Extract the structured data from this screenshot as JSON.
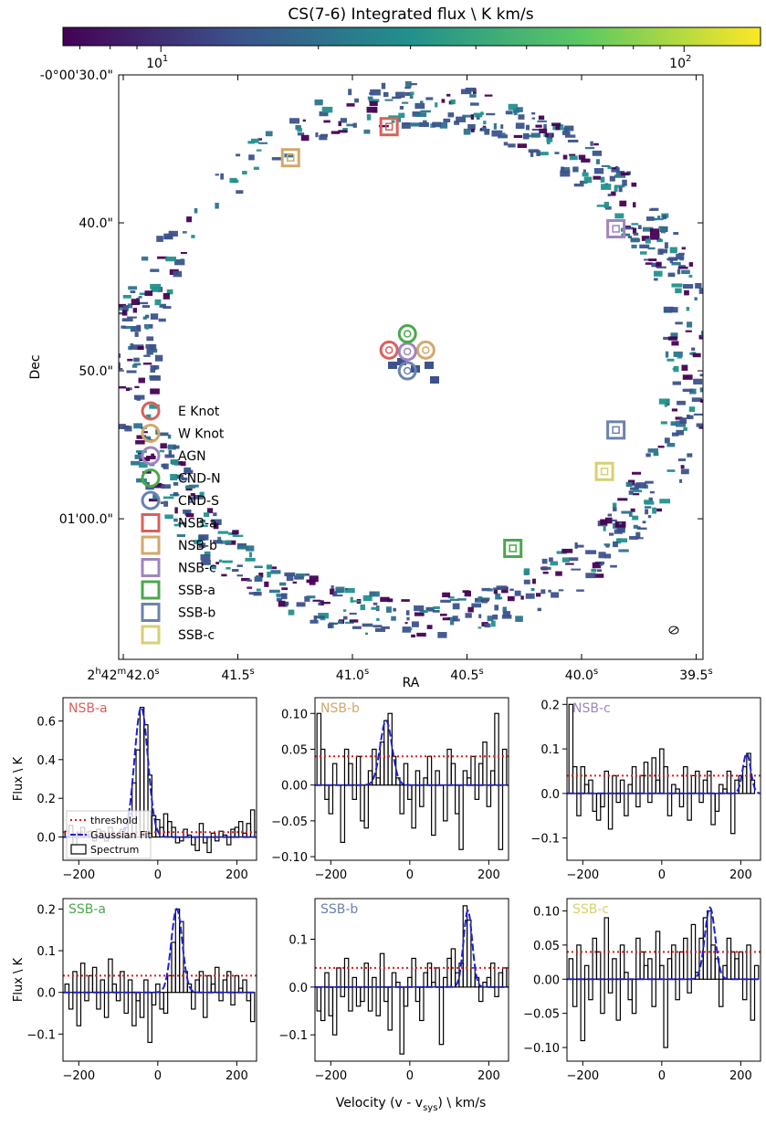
{
  "figure": {
    "colorbar": {
      "title": "CS(7-6) Integrated flux \\ K km/s",
      "scale": "log",
      "range": [
        6.5,
        140
      ],
      "tick_labels": [
        "10",
        "1",
        "10",
        "2"
      ],
      "tick_values": [
        10,
        100
      ],
      "colormap_stops": [
        "#440154",
        "#3b528b",
        "#21918c",
        "#5ec962",
        "#fde725"
      ]
    },
    "map": {
      "xlabel": "RA",
      "ylabel": "Dec",
      "ra_ticks": [
        {
          "label_h": "2",
          "label_hsup": "h",
          "label_m": "42",
          "label_msup": "m",
          "label": "42.0",
          "sup": "s",
          "value": 42.0
        },
        {
          "label": "41.5",
          "sup": "s",
          "value": 41.5
        },
        {
          "label": "41.0",
          "sup": "s",
          "value": 41.0
        },
        {
          "label": "40.5",
          "sup": "s",
          "value": 40.5
        },
        {
          "label": "40.0",
          "sup": "s",
          "value": 40.0
        },
        {
          "label": "39.5",
          "sup": "s",
          "value": 39.5
        }
      ],
      "dec_ticks": [
        {
          "label": "-0°00'30.0\"",
          "value": 30
        },
        {
          "label": "40.0\"",
          "value": 40
        },
        {
          "label": "50.0\"",
          "value": 50
        },
        {
          "label": "01'00.0\"",
          "value": 60
        }
      ],
      "ra_range": [
        42.02,
        39.47
      ],
      "dec_range": [
        30.0,
        69.5
      ],
      "legend": [
        {
          "label": "E Knot",
          "marker": "circle",
          "color": "#d9605b"
        },
        {
          "label": "W Knot",
          "marker": "circle",
          "color": "#d2a86a"
        },
        {
          "label": "AGN",
          "marker": "circle",
          "color": "#9f85bd"
        },
        {
          "label": "CND-N",
          "marker": "circle",
          "color": "#4aa84b"
        },
        {
          "label": "CND-S",
          "marker": "circle",
          "color": "#6a82ae"
        },
        {
          "label": "NSB-a",
          "marker": "square",
          "color": "#d9605b"
        },
        {
          "label": "NSB-b",
          "marker": "square",
          "color": "#d2a86a"
        },
        {
          "label": "NSB-c",
          "marker": "square",
          "color": "#9f85bd"
        },
        {
          "label": "SSB-a",
          "marker": "square",
          "color": "#4aa84b"
        },
        {
          "label": "SSB-b",
          "marker": "square",
          "color": "#6a82ae"
        },
        {
          "label": "SSB-c",
          "marker": "square",
          "color": "#d8d070"
        }
      ],
      "regions": [
        {
          "name": "E Knot",
          "marker": "circle",
          "ra": 40.84,
          "dec": 48.6
        },
        {
          "name": "W Knot",
          "marker": "circle",
          "ra": 40.68,
          "dec": 48.6
        },
        {
          "name": "AGN",
          "marker": "circle",
          "ra": 40.76,
          "dec": 48.7
        },
        {
          "name": "CND-N",
          "marker": "circle",
          "ra": 40.76,
          "dec": 47.5
        },
        {
          "name": "CND-S",
          "marker": "circle",
          "ra": 40.76,
          "dec": 50.0
        },
        {
          "name": "NSB-a",
          "marker": "square",
          "ra": 40.84,
          "dec": 33.5
        },
        {
          "name": "NSB-b",
          "marker": "square",
          "ra": 41.27,
          "dec": 35.6
        },
        {
          "name": "NSB-c",
          "marker": "square",
          "ra": 39.85,
          "dec": 40.4
        },
        {
          "name": "SSB-a",
          "marker": "square",
          "ra": 40.3,
          "dec": 62.0
        },
        {
          "name": "SSB-b",
          "marker": "square",
          "ra": 39.85,
          "dec": 54.0
        },
        {
          "name": "SSB-c",
          "marker": "square",
          "ra": 39.9,
          "dec": 56.8
        }
      ]
    }
  },
  "chart_data": [
    {
      "type": "bar",
      "panel": "NSB-a",
      "title": "NSB-a",
      "color": "#d9605b",
      "ylabel": "Flux \\ K",
      "xlim": [
        -240,
        250
      ],
      "ylim": [
        -0.12,
        0.72
      ],
      "yticks": [
        0.0,
        0.2,
        0.4,
        0.6
      ],
      "xticks": [
        -200,
        0,
        200
      ],
      "threshold": 0.025,
      "gauss": {
        "amp": 0.67,
        "mu": -42,
        "sigma": 17
      },
      "channels": [
        -230,
        -220,
        -210,
        -200,
        -190,
        -180,
        -170,
        -160,
        -150,
        -140,
        -130,
        -120,
        -110,
        -100,
        -90,
        -80,
        -70,
        -60,
        -50,
        -40,
        -30,
        -20,
        -10,
        0,
        10,
        20,
        30,
        40,
        50,
        60,
        70,
        80,
        90,
        100,
        110,
        120,
        130,
        140,
        150,
        160,
        170,
        180,
        190,
        200,
        210,
        220,
        230,
        240
      ],
      "values": [
        0.03,
        0.06,
        -0.04,
        0.02,
        0.05,
        0.01,
        0.03,
        -0.02,
        0.04,
        0.03,
        -0.02,
        0.05,
        0.01,
        0.0,
        0.04,
        0.05,
        0.12,
        0.28,
        0.45,
        0.67,
        0.58,
        0.32,
        0.11,
        0.09,
        0.05,
        0.12,
        0.08,
        0.05,
        -0.03,
        -0.02,
        0.04,
        0.01,
        -0.04,
        -0.07,
        0.07,
        -0.03,
        -0.08,
        0.02,
        -0.02,
        0.03,
        0.01,
        -0.04,
        0.04,
        0.05,
        0.08,
        0.02,
        0.07,
        0.14
      ],
      "legend": [
        {
          "label": "threshold",
          "style": "dotted",
          "color": "#e41a1c"
        },
        {
          "label": "Gaussian Fit",
          "style": "dashed",
          "color": "#1f1fd8"
        },
        {
          "label": "Spectrum",
          "style": "step",
          "color": "#000000"
        }
      ]
    },
    {
      "type": "bar",
      "panel": "NSB-b",
      "title": "NSB-b",
      "color": "#d2a86a",
      "xlim": [
        -240,
        250
      ],
      "ylim": [
        -0.105,
        0.122
      ],
      "yticks": [
        -0.1,
        -0.05,
        0.0,
        0.05,
        0.1
      ],
      "xticks": [
        -200,
        0,
        200
      ],
      "threshold": 0.04,
      "gauss": {
        "amp": 0.09,
        "mu": -60,
        "sigma": 15
      },
      "channels": [
        -230,
        -220,
        -210,
        -200,
        -190,
        -180,
        -170,
        -160,
        -150,
        -140,
        -130,
        -120,
        -110,
        -100,
        -90,
        -80,
        -70,
        -60,
        -50,
        -40,
        -30,
        -20,
        -10,
        0,
        10,
        20,
        30,
        40,
        50,
        60,
        70,
        80,
        90,
        100,
        110,
        120,
        130,
        140,
        150,
        160,
        170,
        180,
        190,
        200,
        210,
        220,
        230,
        240
      ],
      "values": [
        0.1,
        0.05,
        -0.02,
        -0.04,
        0.03,
        0.0,
        -0.08,
        0.05,
        0.03,
        -0.02,
        0.04,
        -0.05,
        -0.06,
        0.02,
        0.05,
        0.01,
        0.06,
        0.09,
        0.1,
        0.04,
        0.01,
        -0.04,
        0.03,
        -0.02,
        -0.06,
        0.02,
        -0.03,
        0.01,
        0.04,
        -0.07,
        0.02,
        0.0,
        -0.05,
        0.05,
        0.03,
        -0.04,
        -0.09,
        0.02,
        0.01,
        0.04,
        -0.02,
        0.03,
        0.06,
        -0.03,
        0.02,
        0.1,
        -0.09,
        0.05
      ]
    },
    {
      "type": "bar",
      "panel": "NSB-c",
      "title": "NSB-c",
      "color": "#9f85bd",
      "xlim": [
        -240,
        250
      ],
      "ylim": [
        -0.15,
        0.215
      ],
      "yticks": [
        -0.1,
        0.0,
        0.1,
        0.2
      ],
      "xticks": [
        -200,
        0,
        200
      ],
      "threshold": 0.04,
      "gauss": {
        "amp": 0.09,
        "mu": 215,
        "sigma": 10
      },
      "channels": [
        -230,
        -220,
        -210,
        -200,
        -190,
        -180,
        -170,
        -160,
        -150,
        -140,
        -130,
        -120,
        -110,
        -100,
        -90,
        -80,
        -70,
        -60,
        -50,
        -40,
        -30,
        -20,
        -10,
        0,
        10,
        20,
        30,
        40,
        50,
        60,
        70,
        80,
        90,
        100,
        110,
        120,
        130,
        140,
        150,
        160,
        170,
        180,
        190,
        200,
        210,
        220,
        230,
        240
      ],
      "values": [
        0.2,
        0.06,
        -0.05,
        0.06,
        0.02,
        0.03,
        -0.04,
        -0.06,
        -0.03,
        0.05,
        -0.08,
        0.04,
        -0.02,
        0.03,
        -0.05,
        0.02,
        0.06,
        -0.03,
        0.04,
        0.07,
        -0.02,
        0.08,
        0.03,
        0.1,
        0.06,
        -0.05,
        0.02,
        0.01,
        -0.03,
        0.06,
        -0.06,
        0.04,
        0.05,
        -0.02,
        0.03,
        0.05,
        -0.07,
        -0.04,
        0.02,
        0.01,
        0.05,
        -0.09,
        0.03,
        0.04,
        0.06,
        0.09,
        0.03,
        0.0
      ]
    },
    {
      "type": "bar",
      "panel": "SSB-a",
      "title": "SSB-a",
      "color": "#4aa84b",
      "ylabel": "Flux \\ K",
      "xlim": [
        -240,
        250
      ],
      "ylim": [
        -0.165,
        0.225
      ],
      "yticks": [
        -0.1,
        0.0,
        0.1,
        0.2
      ],
      "xticks": [
        -200,
        0,
        200
      ],
      "threshold": 0.04,
      "gauss": {
        "amp": 0.2,
        "mu": 48,
        "sigma": 14
      },
      "channels": [
        -230,
        -220,
        -210,
        -200,
        -190,
        -180,
        -170,
        -160,
        -150,
        -140,
        -130,
        -120,
        -110,
        -100,
        -90,
        -80,
        -70,
        -60,
        -50,
        -40,
        -30,
        -20,
        -10,
        0,
        10,
        20,
        30,
        40,
        50,
        60,
        70,
        80,
        90,
        100,
        110,
        120,
        130,
        140,
        150,
        160,
        170,
        180,
        190,
        200,
        210,
        220,
        230,
        240
      ],
      "values": [
        0.02,
        -0.04,
        0.05,
        -0.08,
        0.07,
        -0.02,
        0.04,
        0.06,
        -0.04,
        0.03,
        -0.06,
        0.08,
        0.02,
        -0.02,
        0.05,
        -0.05,
        0.03,
        -0.08,
        -0.02,
        -0.06,
        0.03,
        -0.12,
        -0.03,
        0.02,
        -0.04,
        -0.05,
        0.04,
        0.12,
        0.2,
        0.17,
        0.05,
        0.02,
        -0.04,
        0.03,
        0.05,
        -0.06,
        0.04,
        0.02,
        0.06,
        -0.02,
        0.03,
        0.05,
        -0.03,
        0.04,
        0.01,
        0.03,
        -0.02,
        -0.07
      ]
    },
    {
      "type": "bar",
      "panel": "SSB-b",
      "title": "SSB-b",
      "color": "#6a82ae",
      "xlim": [
        -240,
        250
      ],
      "ylim": [
        -0.155,
        0.185
      ],
      "yticks": [
        -0.1,
        0.0,
        0.1
      ],
      "xticks": [
        -200,
        0,
        200
      ],
      "threshold": 0.04,
      "gauss": {
        "amp": 0.16,
        "mu": 147,
        "sigma": 11
      },
      "channels": [
        -230,
        -220,
        -210,
        -200,
        -190,
        -180,
        -170,
        -160,
        -150,
        -140,
        -130,
        -120,
        -110,
        -100,
        -90,
        -80,
        -70,
        -60,
        -50,
        -40,
        -30,
        -20,
        -10,
        0,
        10,
        20,
        30,
        40,
        50,
        60,
        70,
        80,
        90,
        100,
        110,
        120,
        130,
        140,
        150,
        160,
        170,
        180,
        190,
        200,
        210,
        220,
        230,
        240
      ],
      "values": [
        -0.05,
        -0.07,
        0.03,
        -0.06,
        -0.1,
        0.04,
        -0.02,
        0.06,
        -0.05,
        0.02,
        -0.04,
        -0.03,
        0.05,
        -0.05,
        0.02,
        -0.06,
        0.07,
        -0.03,
        -0.09,
        0.03,
        0.01,
        -0.14,
        -0.04,
        0.02,
        0.06,
        -0.03,
        -0.07,
        0.03,
        0.05,
        0.01,
        0.04,
        -0.12,
        0.02,
        0.06,
        0.08,
        0.03,
        0.05,
        0.17,
        0.14,
        0.04,
        0.02,
        -0.03,
        0.01,
        0.02,
        0.05,
        -0.02,
        0.03,
        0.04
      ]
    },
    {
      "type": "bar",
      "panel": "SSB-c",
      "title": "SSB-c",
      "color": "#d8d070",
      "xlim": [
        -240,
        250
      ],
      "ylim": [
        -0.12,
        0.118
      ],
      "yticks": [
        -0.1,
        -0.05,
        0.0,
        0.05,
        0.1
      ],
      "xticks": [
        -200,
        0,
        200
      ],
      "threshold": 0.04,
      "gauss": {
        "amp": 0.105,
        "mu": 122,
        "sigma": 13
      },
      "channels": [
        -230,
        -220,
        -210,
        -200,
        -190,
        -180,
        -170,
        -160,
        -150,
        -140,
        -130,
        -120,
        -110,
        -100,
        -90,
        -80,
        -70,
        -60,
        -50,
        -40,
        -30,
        -20,
        -10,
        0,
        10,
        20,
        30,
        40,
        50,
        60,
        70,
        80,
        90,
        100,
        110,
        120,
        130,
        140,
        150,
        160,
        170,
        180,
        190,
        200,
        210,
        220,
        230,
        240
      ],
      "values": [
        0.03,
        -0.04,
        0.05,
        -0.09,
        0.02,
        -0.03,
        0.06,
        0.04,
        -0.05,
        0.09,
        -0.02,
        0.03,
        -0.06,
        0.05,
        0.01,
        -0.03,
        -0.05,
        0.06,
        0.04,
        0.02,
        0.03,
        -0.04,
        0.07,
        0.02,
        -0.1,
        0.03,
        0.05,
        -0.03,
        0.04,
        0.06,
        -0.02,
        0.08,
        0.01,
        0.06,
        0.09,
        0.1,
        0.05,
        0.03,
        -0.04,
        0.02,
        0.06,
        0.04,
        0.03,
        0.04,
        -0.03,
        0.05,
        -0.06,
        0.02
      ]
    }
  ],
  "shared": {
    "spectra_xlabel": "Velocity (v - v",
    "spectra_xlabel_sub": "sys",
    "spectra_xlabel_tail": ")  \\  km/s"
  }
}
